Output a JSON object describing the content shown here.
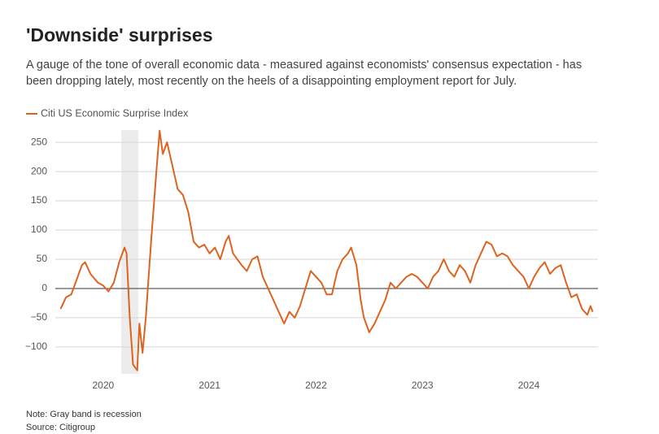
{
  "chart_data": {
    "type": "line",
    "title": "'Downside' surprises",
    "subtitle": "A gauge of the tone of overall economic data - measured against economists' consensus expectation - has been dropping lately, most recently on the heels of a disappointing employment report for July.",
    "note": "Note: Gray band is recession",
    "source": "Source: Citigroup",
    "recession": [
      2020.17,
      2020.33
    ],
    "x": [
      2019.6,
      2019.65,
      2019.7,
      2019.75,
      2019.8,
      2019.83,
      2019.88,
      2019.95,
      2020.0,
      2020.05,
      2020.1,
      2020.15,
      2020.2,
      2020.22,
      2020.25,
      2020.28,
      2020.32,
      2020.34,
      2020.37,
      2020.4,
      2020.45,
      2020.5,
      2020.53,
      2020.56,
      2020.6,
      2020.65,
      2020.7,
      2020.75,
      2020.8,
      2020.85,
      2020.9,
      2020.95,
      2021.0,
      2021.05,
      2021.1,
      2021.15,
      2021.18,
      2021.22,
      2021.3,
      2021.35,
      2021.4,
      2021.45,
      2021.5,
      2021.55,
      2021.6,
      2021.65,
      2021.7,
      2021.75,
      2021.8,
      2021.85,
      2021.9,
      2021.95,
      2022.0,
      2022.05,
      2022.1,
      2022.15,
      2022.2,
      2022.25,
      2022.3,
      2022.33,
      2022.38,
      2022.42,
      2022.45,
      2022.5,
      2022.55,
      2022.6,
      2022.65,
      2022.7,
      2022.75,
      2022.8,
      2022.85,
      2022.9,
      2022.95,
      2023.0,
      2023.05,
      2023.1,
      2023.15,
      2023.2,
      2023.25,
      2023.3,
      2023.35,
      2023.4,
      2023.45,
      2023.5,
      2023.55,
      2023.6,
      2023.65,
      2023.7,
      2023.75,
      2023.8,
      2023.85,
      2023.9,
      2023.95,
      2024.0,
      2024.05,
      2024.1,
      2024.15,
      2024.2,
      2024.25,
      2024.3,
      2024.35,
      2024.4,
      2024.45,
      2024.5,
      2024.55,
      2024.58,
      2024.6
    ],
    "series": [
      {
        "name": "Citi US Economic Surprise Index",
        "color": "#dc6420",
        "values": [
          -35,
          -15,
          -10,
          15,
          40,
          45,
          25,
          10,
          5,
          -5,
          10,
          45,
          70,
          60,
          -50,
          -130,
          -140,
          -60,
          -110,
          -50,
          80,
          200,
          270,
          230,
          250,
          210,
          170,
          160,
          130,
          80,
          70,
          75,
          60,
          70,
          50,
          80,
          90,
          60,
          40,
          30,
          50,
          55,
          20,
          0,
          -20,
          -40,
          -60,
          -40,
          -50,
          -30,
          0,
          30,
          20,
          10,
          -10,
          -10,
          30,
          50,
          60,
          70,
          40,
          -20,
          -50,
          -75,
          -60,
          -40,
          -20,
          10,
          0,
          10,
          20,
          25,
          20,
          10,
          0,
          20,
          30,
          50,
          30,
          20,
          40,
          30,
          10,
          40,
          60,
          80,
          75,
          55,
          60,
          55,
          40,
          30,
          20,
          0,
          20,
          35,
          45,
          25,
          35,
          40,
          10,
          -15,
          -10,
          -35,
          -45,
          -30,
          -40
        ]
      }
    ],
    "xlim": [
      2019.55,
      2024.65
    ],
    "ylim": [
      -146,
      271
    ],
    "xticks": [
      2020,
      2021,
      2022,
      2023,
      2024
    ],
    "yticks": [
      {
        "value": -100,
        "label": "−100"
      },
      {
        "value": -50,
        "label": "−50"
      },
      0,
      50,
      100,
      150,
      200,
      250
    ],
    "grid": true
  }
}
